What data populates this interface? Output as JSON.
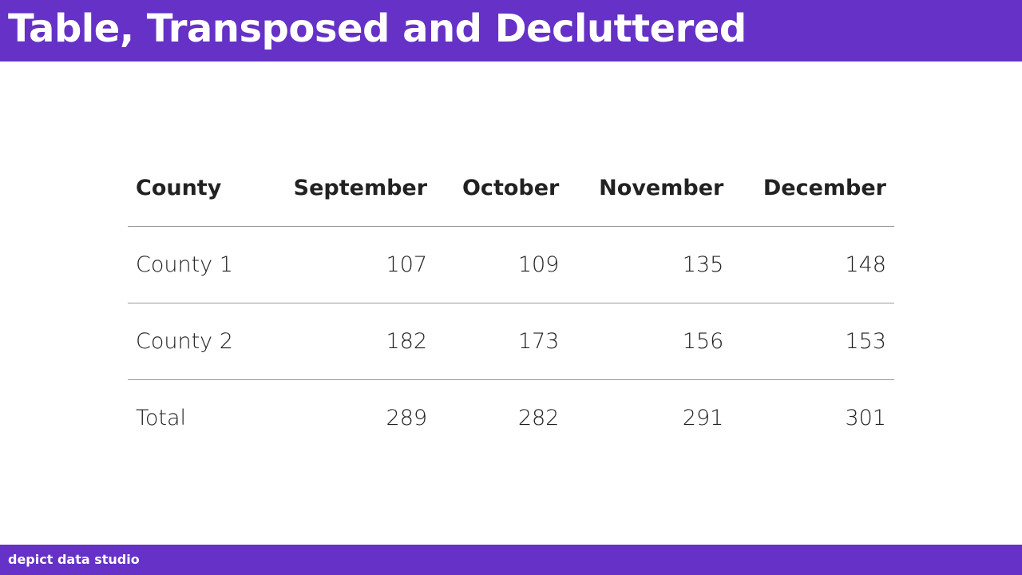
{
  "header": {
    "title": "Table, Transposed and Decluttered"
  },
  "table": {
    "columns": [
      "County",
      "September",
      "October",
      "November",
      "December"
    ],
    "rows": [
      [
        "County 1",
        107,
        109,
        135,
        148
      ],
      [
        "County 2",
        182,
        173,
        156,
        153
      ],
      [
        "Total",
        289,
        282,
        291,
        301
      ]
    ]
  },
  "footer": {
    "brand": "depict data studio"
  }
}
